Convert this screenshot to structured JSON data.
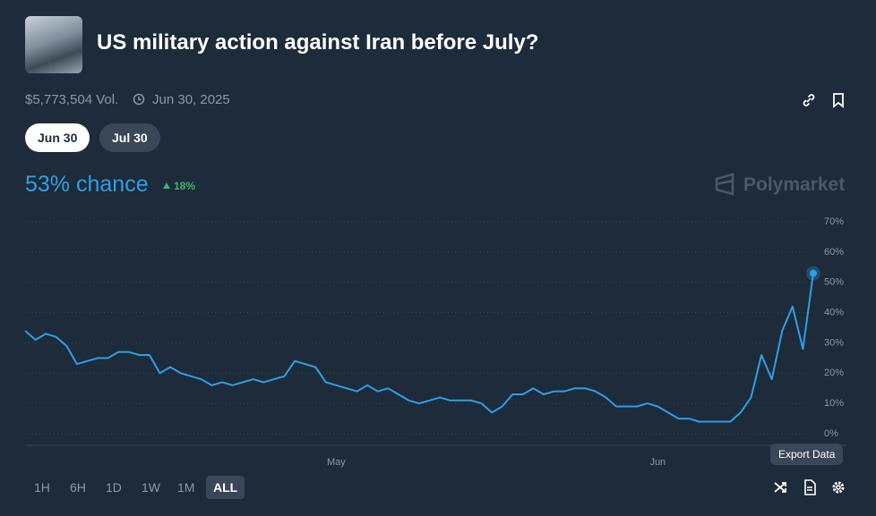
{
  "header": {
    "title": "US military action against Iran before July?",
    "volume": "$5,773,504 Vol.",
    "end_date": "Jun 30, 2025",
    "tabs": [
      "Jun 30",
      "Jul 30"
    ],
    "chance": "53% chance",
    "change": "18%",
    "brand": "Polymarket"
  },
  "ranges": [
    "1H",
    "6H",
    "1D",
    "1W",
    "1M",
    "ALL"
  ],
  "tooltip": "Export Data",
  "chart_data": {
    "type": "line",
    "color": "#2e9fe6",
    "grid": true,
    "categories": [
      null,
      null,
      null,
      null,
      null,
      null,
      null,
      null,
      null,
      null,
      null,
      null,
      null,
      null,
      null,
      null,
      null,
      null,
      null,
      null,
      null,
      null,
      null,
      null,
      null,
      null,
      null,
      null,
      null,
      null,
      "May",
      null,
      null,
      null,
      null,
      null,
      null,
      null,
      null,
      null,
      null,
      null,
      null,
      null,
      null,
      null,
      null,
      null,
      null,
      null,
      null,
      null,
      null,
      null,
      null,
      null,
      null,
      null,
      null,
      null,
      null,
      "Jun",
      null,
      null,
      null,
      null,
      null,
      null,
      null,
      null,
      null,
      null,
      null,
      null,
      null,
      null,
      null
    ],
    "values": [
      34,
      31,
      33,
      32,
      29,
      23,
      24,
      25,
      25,
      27,
      27,
      26,
      26,
      20,
      22,
      20,
      19,
      18,
      16,
      17,
      16,
      17,
      18,
      17,
      18,
      19,
      24,
      23,
      22,
      17,
      16,
      15,
      14,
      16,
      14,
      15,
      13,
      11,
      10,
      11,
      12,
      11,
      11,
      11,
      10,
      7,
      9,
      13,
      13,
      15,
      13,
      14,
      14,
      15,
      15,
      14,
      12,
      9,
      9,
      9,
      10,
      9,
      7,
      5,
      5,
      4,
      4,
      4,
      4,
      7,
      12,
      26,
      18,
      34,
      42,
      28,
      53
    ],
    "ylim": [
      0,
      70
    ],
    "yticks": [
      {
        "value": 0,
        "label": "0%"
      },
      {
        "value": 10,
        "label": "10%"
      },
      {
        "value": 20,
        "label": "20%"
      },
      {
        "value": 30,
        "label": "30%"
      },
      {
        "value": 40,
        "label": "40%"
      },
      {
        "value": 50,
        "label": "50%"
      },
      {
        "value": 60,
        "label": "60%"
      },
      {
        "value": 70,
        "label": "70%"
      }
    ]
  }
}
